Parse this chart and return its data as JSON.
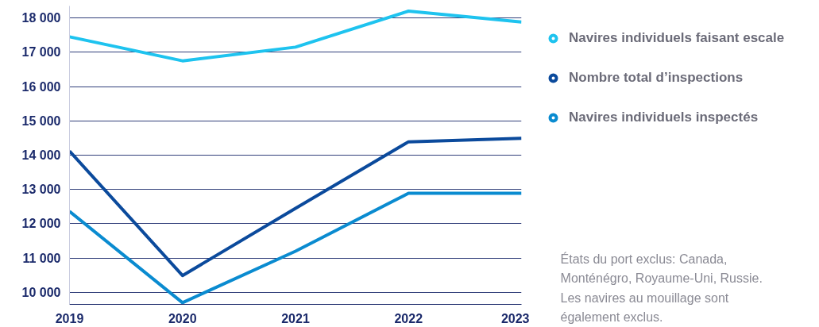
{
  "chart_data": {
    "type": "line",
    "x": [
      2019,
      2020,
      2021,
      2022,
      2023
    ],
    "series": [
      {
        "name": "Navires individuels faisant escale",
        "color": "#1ec3ef",
        "values": [
          17450,
          16750,
          17150,
          18200,
          17880
        ]
      },
      {
        "name": "Nombre total d’inspections",
        "color": "#0b4a9c",
        "values": [
          14120,
          10490,
          12450,
          14390,
          14490
        ]
      },
      {
        "name": "Navires individuels inspectés",
        "color": "#0a8bd0",
        "values": [
          12360,
          9700,
          11200,
          12890,
          12890
        ]
      }
    ],
    "xlim": [
      2019,
      2023
    ],
    "xticks": [
      2019,
      2020,
      2021,
      2022,
      2023
    ],
    "ylim": [
      9650,
      18350
    ],
    "yticks": [
      {
        "value": 10000,
        "label": "10 000"
      },
      {
        "value": 11000,
        "label": "11 000"
      },
      {
        "value": 12000,
        "label": "12 000"
      },
      {
        "value": 13000,
        "label": "13 000"
      },
      {
        "value": 14000,
        "label": "14 000"
      },
      {
        "value": 15000,
        "label": "15 000"
      },
      {
        "value": 16000,
        "label": "16 000"
      },
      {
        "value": 17000,
        "label": "17 000"
      },
      {
        "value": 18000,
        "label": "18 000"
      }
    ],
    "grid": "y",
    "legend": "right",
    "annotations": [
      "États du port exclus: Canada, Monténégro, Royaume-Uni, Russie. Les navires au mouillage sont également exclus."
    ]
  }
}
